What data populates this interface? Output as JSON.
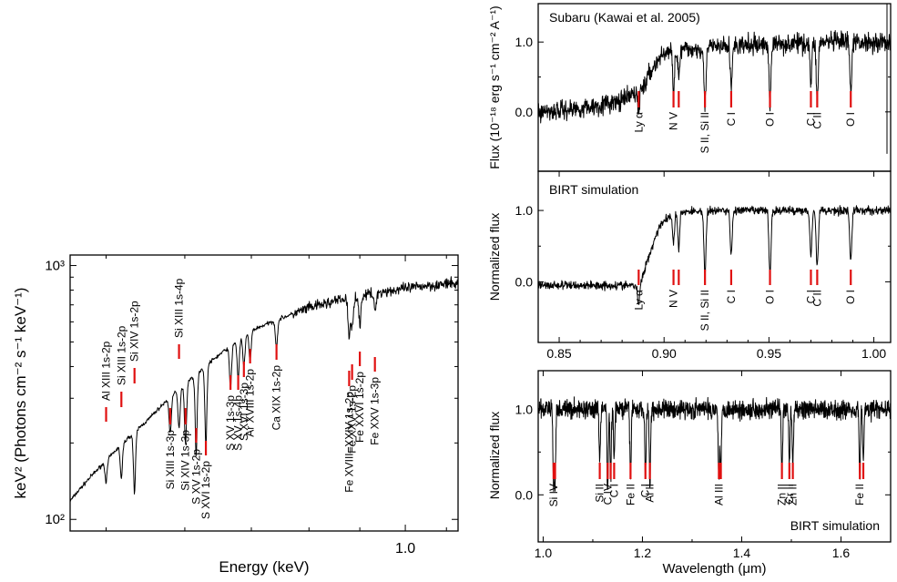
{
  "chart_data": [
    {
      "id": "xray",
      "type": "line",
      "xlabel": "Energy (keV)",
      "ylabel": "keV² (Photons cm⁻² s⁻¹ keV⁻¹)",
      "xscale": "log",
      "yscale": "log",
      "xlim": [
        0.46,
        1.13
      ],
      "ylim": [
        90,
        1100
      ],
      "x_ticks": [
        {
          "value": 1.0,
          "label": "1.0"
        }
      ],
      "y_ticks": [
        {
          "value": 100,
          "label": "10²"
        },
        {
          "value": 1000,
          "label": "10³"
        }
      ],
      "continuum": {
        "x": [
          0.46,
          0.5,
          0.55,
          0.6,
          0.65,
          0.7,
          0.75,
          0.8,
          0.85,
          0.9,
          0.95,
          1.0,
          1.05,
          1.13
        ],
        "y": [
          118,
          170,
          245,
          340,
          445,
          555,
          620,
          680,
          725,
          760,
          790,
          810,
          835,
          850
        ]
      },
      "lines": [
        {
          "energy": 0.5,
          "depth": 0.17,
          "label": "Al XIII 1s-2p"
        },
        {
          "energy": 0.518,
          "depth": 0.27,
          "label": "Si XIII 1s-2p"
        },
        {
          "energy": 0.534,
          "depth": 0.43,
          "label": "Si XIV 1s-2p"
        },
        {
          "energy": 0.58,
          "depth": 0.28,
          "label": "Si XIII 1s-3p"
        },
        {
          "energy": 0.592,
          "depth": 0.3,
          "label": "Si XIII 1s-4p"
        },
        {
          "energy": 0.601,
          "depth": 0.42,
          "label": "Si XIV 1s-3p"
        },
        {
          "energy": 0.616,
          "depth": 0.52,
          "label": "S XV 1s-2p"
        },
        {
          "energy": 0.63,
          "depth": 0.52,
          "label": "S XVI 1s-2p"
        },
        {
          "energy": 0.667,
          "depth": 0.32,
          "label": "S XV 1s-3p"
        },
        {
          "energy": 0.679,
          "depth": 0.3,
          "label": "S XV 1s-4p"
        },
        {
          "energy": 0.688,
          "depth": 0.25,
          "label": "S XVI 1s-3p"
        },
        {
          "energy": 0.698,
          "depth": 0.24,
          "label": "Ar XVIII 1s-2p"
        },
        {
          "energy": 0.742,
          "depth": 0.22,
          "label": "Ca XIX 1s-2p"
        },
        {
          "energy": 0.878,
          "depth": 0.3,
          "label": "Fe XVIII–XXIV 1s-2p"
        },
        {
          "energy": 0.884,
          "depth": 0.25,
          "label": "Fe XXV 1s-2p"
        },
        {
          "energy": 0.9,
          "depth": 0.23,
          "label": "Fe XXVI 1s-2p"
        },
        {
          "energy": 0.932,
          "depth": 0.15,
          "label": "Fe XXV 1s-3p"
        }
      ]
    },
    {
      "id": "subaru",
      "type": "line",
      "title": "Subaru (Kawai et al. 2005)",
      "ylabel": "Flux (10⁻¹⁸ erg s⁻¹ cm⁻² A⁻¹)",
      "xlim": [
        0.84,
        1.008
      ],
      "ylim": [
        -0.85,
        1.55
      ],
      "y_ticks": [
        {
          "value": 0.0,
          "label": "0.0"
        },
        {
          "value": 1.0,
          "label": "1.0"
        }
      ],
      "continuum": {
        "x": [
          0.84,
          0.86,
          0.88,
          0.89,
          0.895,
          0.9,
          0.92,
          0.94,
          0.96,
          0.98,
          1.008
        ],
        "y": [
          0.0,
          0.05,
          0.15,
          0.35,
          0.65,
          0.85,
          0.92,
          0.95,
          0.98,
          1.0,
          1.0
        ]
      },
      "lines": [
        {
          "wl": 0.8879,
          "depth": 0.3,
          "label": "Ly α"
        },
        {
          "wl": 0.9045,
          "depth": 0.5,
          "label": "N V"
        },
        {
          "wl": 0.907,
          "depth": 0.4,
          "label": ""
        },
        {
          "wl": 0.9195,
          "depth": 0.9,
          "label": "S II, Si II"
        },
        {
          "wl": 0.932,
          "depth": 0.6,
          "label": "C I"
        },
        {
          "wl": 0.9505,
          "depth": 0.9,
          "label": "O I"
        },
        {
          "wl": 0.97,
          "depth": 0.6,
          "label": "C I"
        },
        {
          "wl": 0.973,
          "depth": 0.9,
          "label": "C II"
        },
        {
          "wl": 0.989,
          "depth": 0.8,
          "label": "O I"
        }
      ]
    },
    {
      "id": "birt_top",
      "type": "line",
      "title": "BIRT simulation",
      "ylabel": "Normalized flux",
      "xlabel": "",
      "xlim": [
        0.84,
        1.008
      ],
      "ylim": [
        -0.85,
        1.55
      ],
      "x_ticks": [
        {
          "value": 0.85,
          "label": "0.85"
        },
        {
          "value": 0.9,
          "label": "0.90"
        },
        {
          "value": 0.95,
          "label": "0.95"
        },
        {
          "value": 1.0,
          "label": "1.00"
        }
      ],
      "y_ticks": [
        {
          "value": 0.0,
          "label": "0.0"
        },
        {
          "value": 1.0,
          "label": "1.0"
        }
      ],
      "continuum": {
        "x": [
          0.84,
          0.885,
          0.888,
          0.892,
          0.898,
          0.905,
          0.93,
          1.008
        ],
        "y": [
          -0.05,
          -0.05,
          -0.1,
          0.3,
          0.8,
          0.98,
          1.0,
          1.0
        ]
      },
      "lines": [
        {
          "wl": 0.8879,
          "depth": 0.2,
          "label": "Ly α"
        },
        {
          "wl": 0.9045,
          "depth": 0.4,
          "label": "N V"
        },
        {
          "wl": 0.907,
          "depth": 0.5,
          "label": ""
        },
        {
          "wl": 0.9195,
          "depth": 0.9,
          "label": "S II, Si II"
        },
        {
          "wl": 0.932,
          "depth": 0.6,
          "label": "C I"
        },
        {
          "wl": 0.9505,
          "depth": 0.9,
          "label": "O I"
        },
        {
          "wl": 0.97,
          "depth": 0.6,
          "label": "C I"
        },
        {
          "wl": 0.973,
          "depth": 0.8,
          "label": "C II"
        },
        {
          "wl": 0.989,
          "depth": 0.7,
          "label": "O I"
        }
      ]
    },
    {
      "id": "birt_bottom",
      "type": "line",
      "title": "BIRT simulation",
      "ylabel": "Normalized flux",
      "xlabel": "Wavelength (μm)",
      "xlim": [
        0.99,
        1.7
      ],
      "ylim": [
        -0.55,
        1.45
      ],
      "x_ticks": [
        {
          "value": 1.0,
          "label": "1.0"
        },
        {
          "value": 1.2,
          "label": "1.2"
        },
        {
          "value": 1.4,
          "label": "1.4"
        },
        {
          "value": 1.6,
          "label": "1.6"
        }
      ],
      "y_ticks": [
        {
          "value": 0.0,
          "label": "0.0"
        },
        {
          "value": 1.0,
          "label": "1.0"
        }
      ],
      "lines": [
        {
          "wl": 1.021,
          "depth": 0.9,
          "label": "Si IV"
        },
        {
          "wl": 1.024,
          "depth": 0.8,
          "label": ""
        },
        {
          "wl": 1.114,
          "depth": 0.6,
          "label": "Si II"
        },
        {
          "wl": 1.13,
          "depth": 0.95,
          "label": "C IV"
        },
        {
          "wl": 1.136,
          "depth": 0.8,
          "label": ""
        },
        {
          "wl": 1.143,
          "depth": 0.6,
          "label": "C I"
        },
        {
          "wl": 1.176,
          "depth": 0.8,
          "label": "Fe II"
        },
        {
          "wl": 1.206,
          "depth": 0.8,
          "label": "C I"
        },
        {
          "wl": 1.215,
          "depth": 0.9,
          "label": "Al II"
        },
        {
          "wl": 1.354,
          "depth": 0.8,
          "label": "Al III"
        },
        {
          "wl": 1.358,
          "depth": 0.7,
          "label": ""
        },
        {
          "wl": 1.481,
          "depth": 0.8,
          "label": "Zn II"
        },
        {
          "wl": 1.496,
          "depth": 0.6,
          "label": "Cr II"
        },
        {
          "wl": 1.503,
          "depth": 0.7,
          "label": "Zn II"
        },
        {
          "wl": 1.638,
          "depth": 0.8,
          "label": "Fe II"
        },
        {
          "wl": 1.645,
          "depth": 0.6,
          "label": ""
        }
      ]
    }
  ],
  "colors": {
    "marker": "#e01010",
    "spectrum": "#000000"
  }
}
